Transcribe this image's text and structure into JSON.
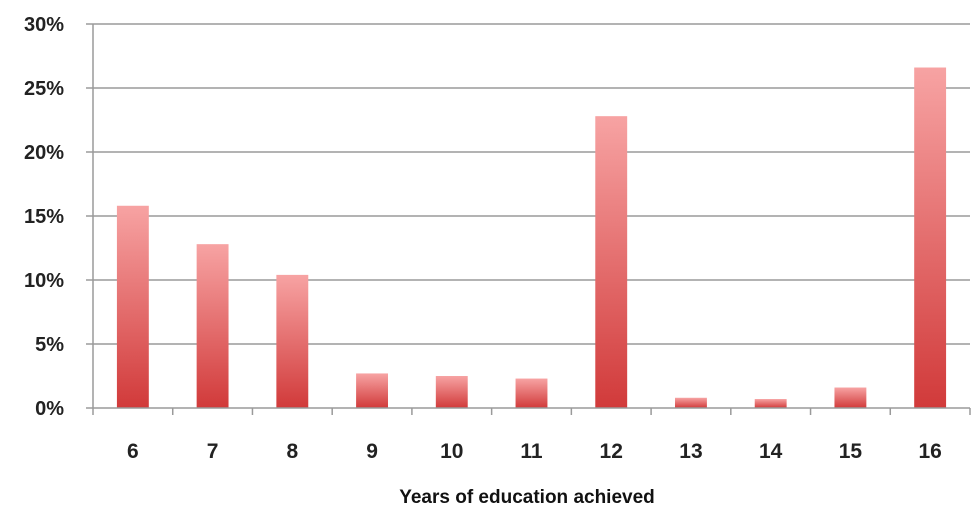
{
  "chart_data": {
    "type": "bar",
    "title": "",
    "xlabel": "Years of education achieved",
    "ylabel": "",
    "categories": [
      "6",
      "7",
      "8",
      "9",
      "10",
      "11",
      "12",
      "13",
      "14",
      "15",
      "16"
    ],
    "series": [
      {
        "values": [
          0.158,
          0.128,
          0.104,
          0.027,
          0.025,
          0.023,
          0.228,
          0.008,
          0.007,
          0.016,
          0.266
        ]
      }
    ],
    "ylim": [
      0,
      0.3
    ],
    "yticks": [
      0,
      0.05,
      0.1,
      0.15,
      0.2,
      0.25,
      0.3
    ],
    "ytick_labels": [
      "0%",
      "5%",
      "10%",
      "15%",
      "20%",
      "25%",
      "30%"
    ],
    "grid": true,
    "legend": "none",
    "colors": {
      "bar_top": "#f7a3a3",
      "bar_bottom": "#d13a3a",
      "grid": "#9a9a9a",
      "axis": "#9a9a9a"
    }
  }
}
